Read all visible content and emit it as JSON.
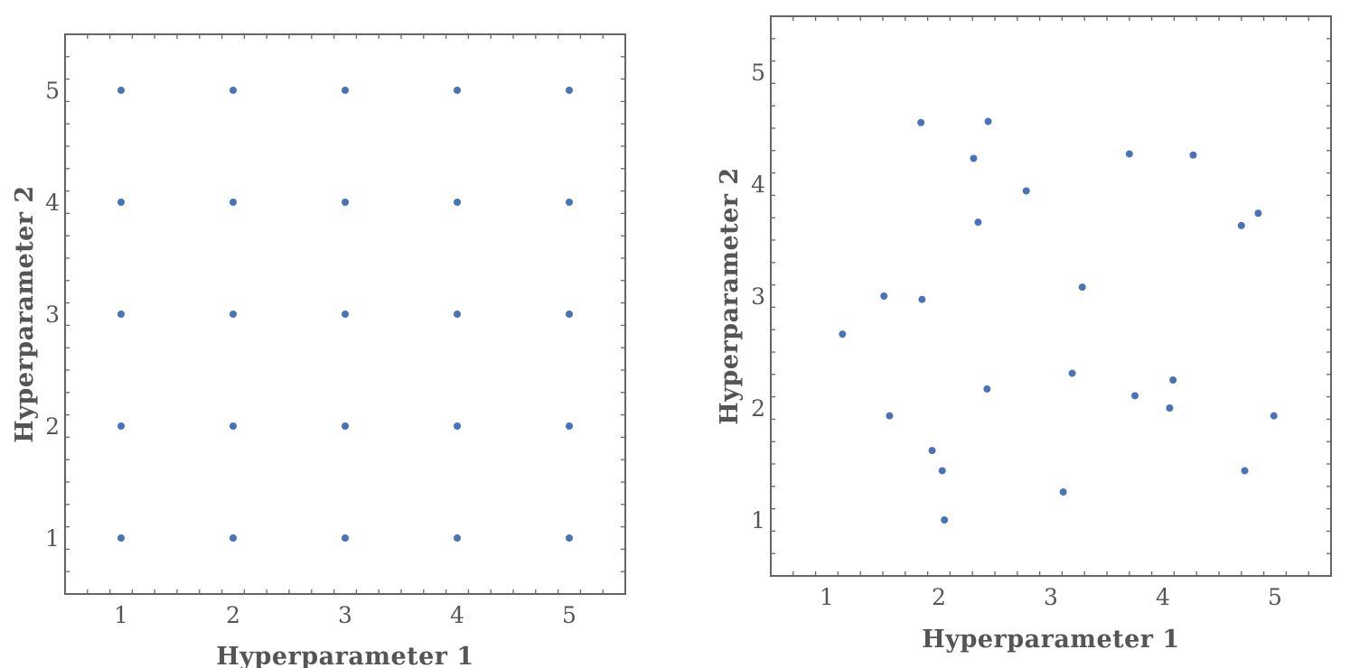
{
  "chart_data": [
    {
      "type": "scatter",
      "xlabel": "Hyperparameter 1",
      "ylabel": "Hyperparameter 2",
      "xlim": [
        0.5,
        5.5
      ],
      "ylim": [
        0.5,
        5.5
      ],
      "xticks": [
        "1",
        "2",
        "3",
        "4",
        "5"
      ],
      "yticks": [
        "1",
        "2",
        "3",
        "4",
        "5"
      ],
      "grid": false,
      "point_color": "#4a72b8",
      "points": [
        [
          1,
          1
        ],
        [
          2,
          1
        ],
        [
          3,
          1
        ],
        [
          4,
          1
        ],
        [
          5,
          1
        ],
        [
          1,
          2
        ],
        [
          2,
          2
        ],
        [
          3,
          2
        ],
        [
          4,
          2
        ],
        [
          5,
          2
        ],
        [
          1,
          3
        ],
        [
          2,
          3
        ],
        [
          3,
          3
        ],
        [
          4,
          3
        ],
        [
          5,
          3
        ],
        [
          1,
          4
        ],
        [
          2,
          4
        ],
        [
          3,
          4
        ],
        [
          4,
          4
        ],
        [
          5,
          4
        ],
        [
          1,
          5
        ],
        [
          2,
          5
        ],
        [
          3,
          5
        ],
        [
          4,
          5
        ],
        [
          5,
          5
        ]
      ]
    },
    {
      "type": "scatter",
      "xlabel": "Hyperparameter 1",
      "ylabel": "Hyperparameter 2",
      "xlim": [
        0.5,
        5.5
      ],
      "ylim": [
        0.5,
        5.5
      ],
      "xticks": [
        "1",
        "2",
        "3",
        "4",
        "5"
      ],
      "yticks": [
        "1",
        "2",
        "3",
        "4",
        "5"
      ],
      "grid": false,
      "point_color": "#4a72b8",
      "points": [
        [
          1.84,
          4.55
        ],
        [
          2.44,
          4.56
        ],
        [
          2.31,
          4.23
        ],
        [
          3.7,
          4.27
        ],
        [
          4.27,
          4.26
        ],
        [
          2.78,
          3.94
        ],
        [
          2.35,
          3.66
        ],
        [
          4.7,
          3.63
        ],
        [
          4.85,
          3.74
        ],
        [
          1.51,
          3.0
        ],
        [
          1.85,
          2.97
        ],
        [
          3.28,
          3.08
        ],
        [
          1.14,
          2.66
        ],
        [
          3.19,
          2.31
        ],
        [
          4.09,
          2.25
        ],
        [
          3.75,
          2.11
        ],
        [
          2.43,
          2.17
        ],
        [
          4.06,
          2.0
        ],
        [
          1.56,
          1.93
        ],
        [
          4.99,
          1.93
        ],
        [
          1.94,
          1.62
        ],
        [
          2.03,
          1.44
        ],
        [
          4.73,
          1.44
        ],
        [
          3.11,
          1.25
        ],
        [
          2.05,
          1.0
        ]
      ]
    }
  ]
}
